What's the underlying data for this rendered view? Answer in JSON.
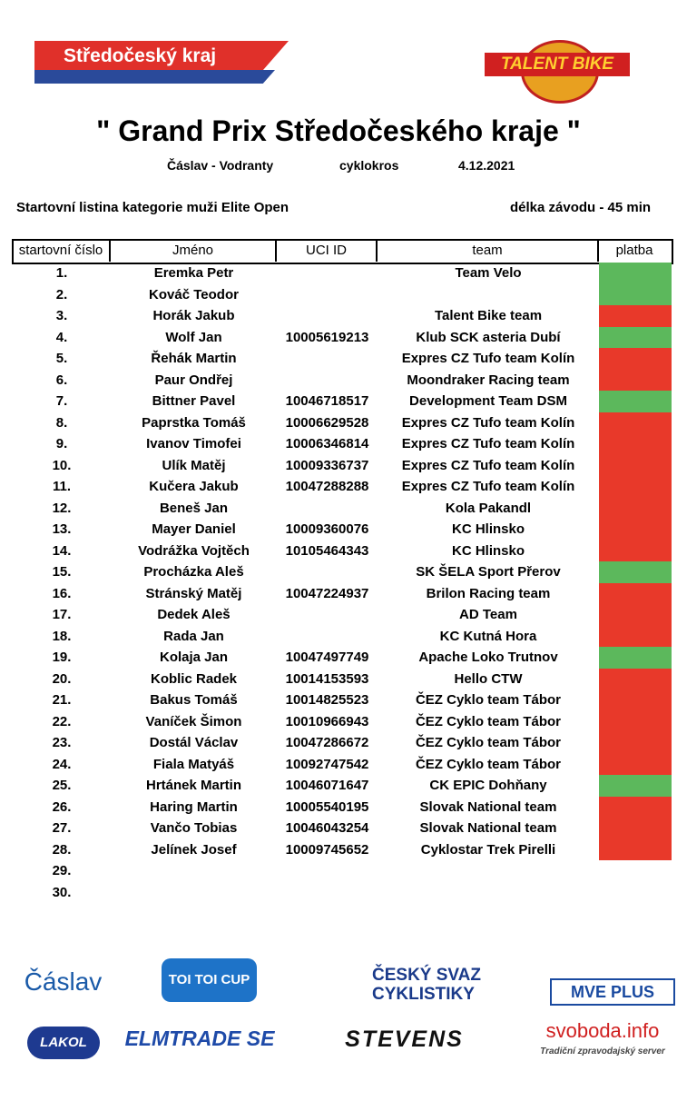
{
  "header": {
    "region_logo": "Středočeský kraj",
    "brand_logo": "TALENT BIKE",
    "title": "\" Grand Prix Středočeského kraje \"",
    "place": "Čáslav - Vodranty",
    "discipline": "cyklokros",
    "date": "4.12.2021",
    "category": "Startovní listina kategorie muži Elite Open",
    "duration": "délka závodu - 45 min"
  },
  "table": {
    "columns": [
      "startovní číslo",
      "Jméno",
      "UCI ID",
      "team",
      "platba"
    ],
    "rows": [
      [
        "1.",
        "Eremka Petr",
        null,
        "Team Velo"
      ],
      [
        "2.",
        "Kováč Teodor",
        null,
        null
      ],
      [
        "3.",
        "Horák Jakub",
        null,
        "Talent Bike team"
      ],
      [
        "4.",
        "Wolf Jan",
        "10005619213",
        "Klub SCK asteria Dubí"
      ],
      [
        "5.",
        "Řehák Martin",
        null,
        "Expres CZ Tufo team Kolín"
      ],
      [
        "6.",
        "Paur Ondřej",
        null,
        "Moondraker Racing team"
      ],
      [
        "7.",
        "Bittner Pavel",
        "10046718517",
        "Development Team DSM"
      ],
      [
        "8.",
        "Paprstka Tomáš",
        "10006629528",
        "Expres CZ Tufo team Kolín"
      ],
      [
        "9.",
        "Ivanov Timofei",
        "10006346814",
        "Expres CZ Tufo team Kolín"
      ],
      [
        "10.",
        "Ulík Matěj",
        "10009336737",
        "Expres CZ Tufo team Kolín"
      ],
      [
        "11.",
        "Kučera Jakub",
        "10047288288",
        "Expres CZ Tufo team Kolín"
      ],
      [
        "12.",
        "Beneš Jan",
        null,
        "Kola Pakandl"
      ],
      [
        "13.",
        "Mayer Daniel",
        "10009360076",
        "KC Hlinsko"
      ],
      [
        "14.",
        "Vodrážka Vojtěch",
        "10105464343",
        "KC Hlinsko"
      ],
      [
        "15.",
        "Procházka Aleš",
        null,
        "SK ŠELA Sport Přerov"
      ],
      [
        "16.",
        "Stránský Matěj",
        "10047224937",
        "Brilon Racing team"
      ],
      [
        "17.",
        "Dedek Aleš",
        null,
        "AD Team"
      ],
      [
        "18.",
        "Rada Jan",
        null,
        "KC Kutná Hora"
      ],
      [
        "19.",
        "Kolaja Jan",
        "10047497749",
        "Apache Loko Trutnov"
      ],
      [
        "20.",
        "Koblic Radek",
        "10014153593",
        "Hello CTW"
      ],
      [
        "21.",
        "Bakus Tomáš",
        "10014825523",
        "ČEZ Cyklo team Tábor"
      ],
      [
        "22.",
        "Vaníček Šimon",
        "10010966943",
        "ČEZ Cyklo team Tábor"
      ],
      [
        "23.",
        "Dostál Václav",
        "10047286672",
        "ČEZ Cyklo team Tábor"
      ],
      [
        "24.",
        "Fiala Matyáš",
        "10092747542",
        "ČEZ Cyklo team Tábor"
      ],
      [
        "25.",
        "Hrtánek Martin",
        "10046071647",
        "CK EPIC Dohňany"
      ],
      [
        "26.",
        "Haring Martin",
        "10005540195",
        "Slovak National team"
      ],
      [
        "27.",
        "Vančo Tobias",
        "10046043254",
        "Slovak National team"
      ],
      [
        "28.",
        "Jelínek Josef",
        "10009745652",
        "Cyklostar Trek Pirelli"
      ],
      [
        "29.",
        null,
        null,
        null
      ],
      [
        "30.",
        null,
        null,
        null
      ]
    ],
    "platba": [
      "#5cb85c",
      "#5cb85c",
      "#e8392a",
      "#5cb85c",
      "#e8392a",
      "#e8392a",
      "#5cb85c",
      "#e8392a",
      "#e8392a",
      "#e8392a",
      "#e8392a",
      "#e8392a",
      "#e8392a",
      "#e8392a",
      "#5cb85c",
      "#e8392a",
      "#e8392a",
      "#e8392a",
      "#5cb85c",
      "#e8392a",
      "#e8392a",
      "#e8392a",
      "#e8392a",
      "#e8392a",
      "#5cb85c",
      "#e8392a",
      "#e8392a",
      "#e8392a",
      null,
      null
    ]
  },
  "sponsors": [
    "Čáslav",
    "TOI TOI CUP",
    "ČESKÝ SVAZ CYKLISTIKY",
    "MVE PLUS",
    "LAKOL",
    "ELMTRADE SE",
    "STEVENS",
    "svoboda.info",
    "Tradiční zpravodajský server"
  ]
}
